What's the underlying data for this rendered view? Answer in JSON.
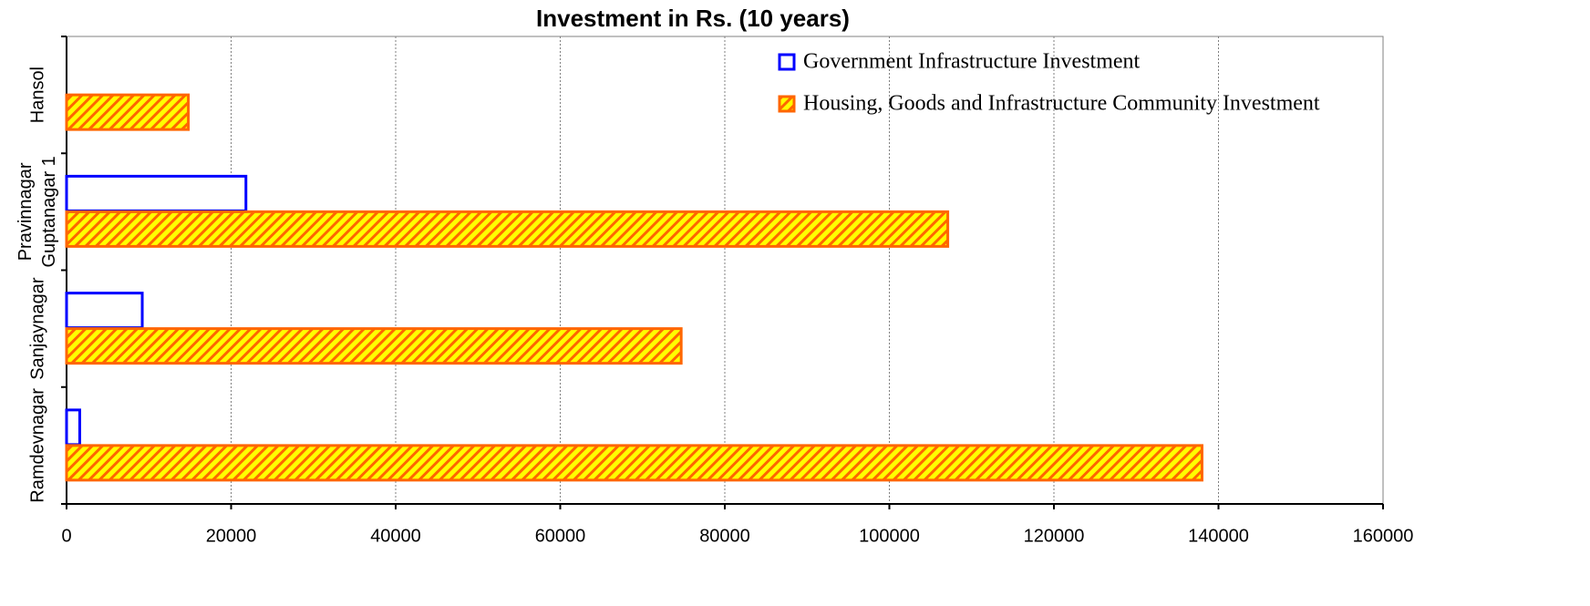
{
  "chart_data": {
    "type": "barh",
    "title": "Investment in Rs. (10 years)",
    "categories": [
      "Hansol",
      "Pravinnagar Guptanagar 1",
      "Sanjaynagar",
      "Ramdevnagar"
    ],
    "series": [
      {
        "name": "Government Infrastructure Investment",
        "color": "#0000ff",
        "values": [
          0,
          21800,
          9200,
          1600
        ]
      },
      {
        "name": "Housing, Goods and Infrastructure Community Investment",
        "color": "#ff6600",
        "values": [
          14800,
          107100,
          74700,
          138000
        ]
      }
    ],
    "xlim": [
      0,
      160000
    ],
    "xticks": [
      0,
      20000,
      40000,
      60000,
      80000,
      100000,
      120000,
      140000,
      160000
    ],
    "grid": true,
    "legend": "upper right"
  }
}
